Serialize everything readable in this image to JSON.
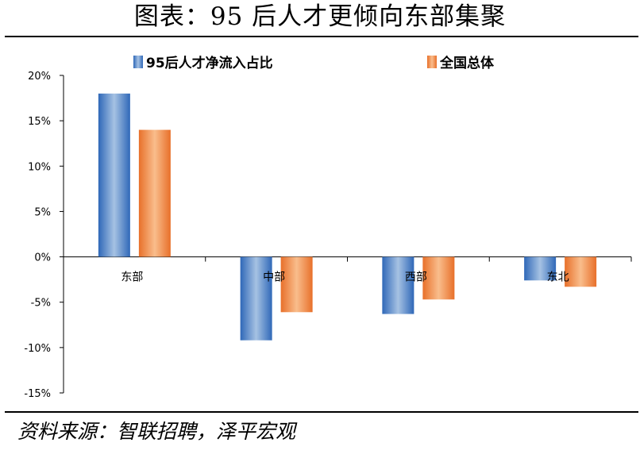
{
  "header": {
    "title": "图表：95 后人才更倾向东部集聚"
  },
  "footer": {
    "source": "资料来源：智联招聘，泽平宏观"
  },
  "chart_data": {
    "type": "bar",
    "title": "",
    "xlabel": "",
    "ylabel": "",
    "categories": [
      "东部",
      "中部",
      "西部",
      "东北"
    ],
    "series": [
      {
        "name": "95后人才净流入占比",
        "values": [
          18.0,
          -9.2,
          -6.3,
          -2.6
        ],
        "color": "#4a7fc1"
      },
      {
        "name": "全国总体",
        "values": [
          14.0,
          -6.1,
          -4.7,
          -3.3
        ],
        "color": "#ee7d36"
      }
    ],
    "ylim": [
      -15,
      20
    ],
    "yticks": [
      20,
      15,
      10,
      5,
      0,
      -5,
      -10,
      -15
    ],
    "ytick_labels": [
      "20%",
      "15%",
      "10%",
      "5%",
      "0%",
      "-5%",
      "-10%",
      "-15%"
    ],
    "grid": false,
    "legend_position": "top"
  }
}
